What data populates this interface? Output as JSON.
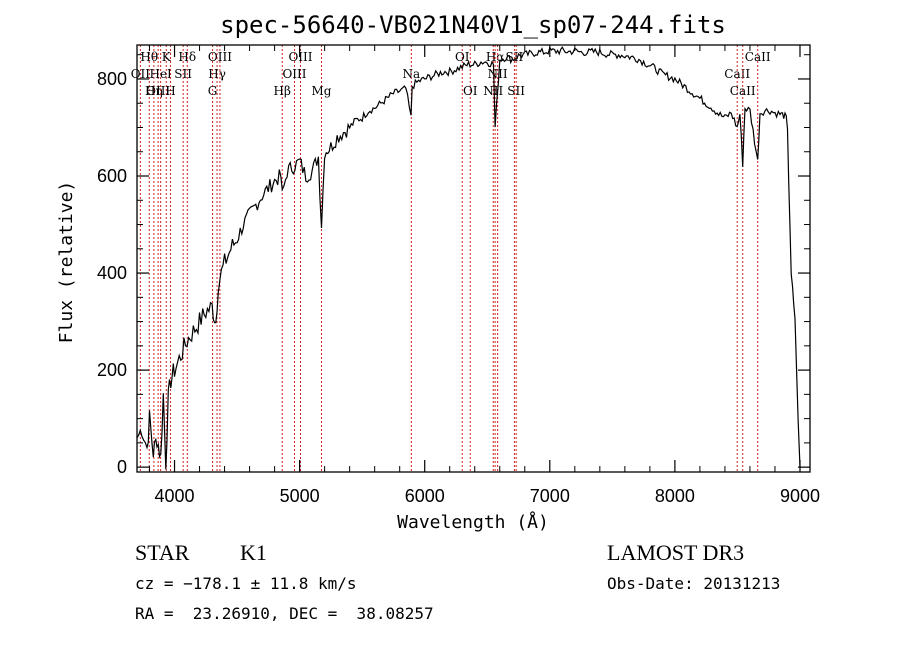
{
  "chart_data": {
    "type": "line",
    "title": "spec-56640-VB021N40V1_sp07-244.fits",
    "xlabel": "Wavelength (Å)",
    "ylabel": "Flux (relative)",
    "xlim": [
      3700,
      9080
    ],
    "ylim": [
      -10,
      870
    ],
    "xticks": [
      4000,
      5000,
      6000,
      7000,
      8000,
      9000
    ],
    "yticks": [
      0,
      200,
      400,
      600,
      800
    ],
    "grid": false,
    "series": [
      {
        "name": "spectrum",
        "x": [
          3700,
          3740,
          3780,
          3800,
          3830,
          3860,
          3890,
          3910,
          3930,
          3950,
          3970,
          4000,
          4050,
          4100,
          4150,
          4200,
          4250,
          4300,
          4330,
          4350,
          4400,
          4450,
          4500,
          4550,
          4600,
          4650,
          4700,
          4750,
          4800,
          4850,
          4861,
          4900,
          4950,
          5000,
          5050,
          5100,
          5150,
          5175,
          5200,
          5250,
          5300,
          5350,
          5400,
          5450,
          5500,
          5550,
          5600,
          5650,
          5700,
          5750,
          5800,
          5850,
          5890,
          5900,
          5950,
          6000,
          6050,
          6100,
          6150,
          6200,
          6250,
          6300,
          6350,
          6400,
          6450,
          6500,
          6550,
          6563,
          6600,
          6650,
          6700,
          6750,
          6800,
          6850,
          6900,
          6950,
          7000,
          7050,
          7100,
          7150,
          7200,
          7250,
          7300,
          7350,
          7400,
          7450,
          7500,
          7550,
          7600,
          7650,
          7700,
          7750,
          7800,
          7850,
          7900,
          7950,
          8000,
          8050,
          8100,
          8150,
          8200,
          8250,
          8300,
          8350,
          8400,
          8450,
          8498,
          8520,
          8542,
          8560,
          8600,
          8662,
          8680,
          8720,
          8760,
          8800,
          8840,
          8870,
          8890,
          8900,
          8930,
          8960,
          8985,
          9000
        ],
        "values": [
          60,
          80,
          40,
          100,
          30,
          60,
          20,
          150,
          10,
          140,
          180,
          200,
          230,
          260,
          280,
          300,
          320,
          330,
          300,
          380,
          420,
          450,
          470,
          500,
          520,
          540,
          560,
          575,
          590,
          600,
          560,
          610,
          620,
          630,
          600,
          610,
          640,
          500,
          650,
          660,
          680,
          690,
          700,
          715,
          720,
          735,
          740,
          750,
          760,
          770,
          775,
          780,
          720,
          785,
          795,
          800,
          805,
          810,
          815,
          815,
          820,
          825,
          830,
          830,
          835,
          835,
          830,
          700,
          840,
          845,
          840,
          848,
          850,
          852,
          855,
          855,
          858,
          857,
          858,
          856,
          858,
          855,
          855,
          856,
          855,
          852,
          850,
          850,
          848,
          845,
          842,
          835,
          828,
          820,
          810,
          805,
          800,
          790,
          780,
          770,
          760,
          750,
          740,
          728,
          720,
          730,
          700,
          728,
          625,
          740,
          735,
          630,
          730,
          735,
          735,
          730,
          728,
          725,
          720,
          690,
          400,
          300,
          100,
          0
        ]
      }
    ],
    "lines": [
      {
        "label": "Hθ",
        "x": 3798,
        "row": 1
      },
      {
        "label": "OII",
        "x": 3727,
        "row": 2
      },
      {
        "label": "OIII",
        "x": 3869,
        "row": 3
      },
      {
        "label": "Hη",
        "x": 3835,
        "row": 3
      },
      {
        "label": "K",
        "x": 3934,
        "row": 1
      },
      {
        "label": "HeI",
        "x": 3889,
        "row": 2
      },
      {
        "label": "SII",
        "x": 4069,
        "row": 2
      },
      {
        "label": "H",
        "x": 3968,
        "row": 3
      },
      {
        "label": "Hδ",
        "x": 4102,
        "row": 1
      },
      {
        "label": "OIII",
        "x": 4363,
        "row": 1
      },
      {
        "label": "Hγ",
        "x": 4340,
        "row": 2
      },
      {
        "label": "G",
        "x": 4304,
        "row": 3
      },
      {
        "label": "Hβ",
        "x": 4861,
        "row": 3
      },
      {
        "label": "OIII",
        "x": 5007,
        "row": 1
      },
      {
        "label": "OIII",
        "x": 4959,
        "row": 2
      },
      {
        "label": "Mg",
        "x": 5175,
        "row": 3
      },
      {
        "label": "Na",
        "x": 5893,
        "row": 2
      },
      {
        "label": "OI",
        "x": 6300,
        "row": 1
      },
      {
        "label": "OI",
        "x": 6364,
        "row": 3
      },
      {
        "label": "Hα",
        "x": 6563,
        "row": 1
      },
      {
        "label": "NII",
        "x": 6548,
        "row": 3
      },
      {
        "label": "SII",
        "x": 6717,
        "row": 1
      },
      {
        "label": "NII",
        "x": 6583,
        "row": 2
      },
      {
        "label": "SII",
        "x": 6731,
        "row": 3
      },
      {
        "label": "CaII",
        "x": 8662,
        "row": 1
      },
      {
        "label": "CaII",
        "x": 8498,
        "row": 2
      },
      {
        "label": "CaII",
        "x": 8542,
        "row": 3
      }
    ]
  },
  "footer": {
    "class_label": "STAR",
    "subclass": "K1",
    "survey": "LAMOST DR3",
    "velocity": "cz = −178.1 ± 11.8 km/s",
    "obs_date": "Obs-Date: 20131213",
    "coords": "RA =  23.26910, DEC =  38.08257"
  }
}
